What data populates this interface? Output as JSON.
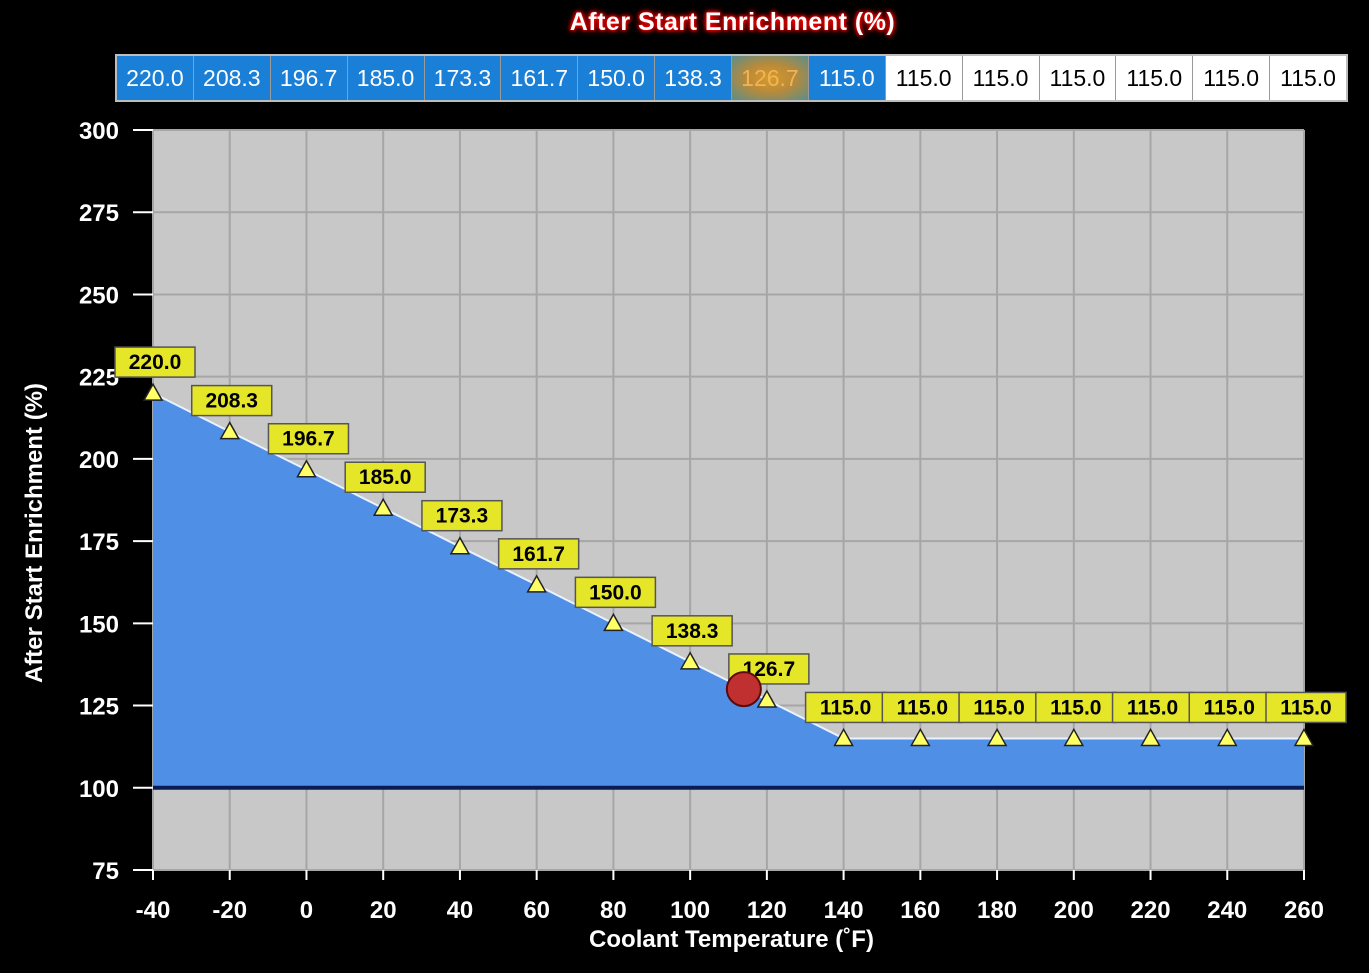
{
  "chart_data": {
    "type": "area",
    "title": "After Start Enrichment (%)",
    "xlabel": "Coolant Temperature (˚F)",
    "ylabel": "After Start Enrichment (%)",
    "x": [
      -40,
      -20,
      0,
      20,
      40,
      60,
      80,
      100,
      120,
      140,
      160,
      180,
      200,
      220,
      240,
      260
    ],
    "values": [
      220.0,
      208.3,
      196.7,
      185.0,
      173.3,
      161.7,
      150.0,
      138.3,
      126.7,
      115.0,
      115.0,
      115.0,
      115.0,
      115.0,
      115.0,
      115.0
    ],
    "labels": [
      "220.0",
      "208.3",
      "196.7",
      "185.0",
      "173.3",
      "161.7",
      "150.0",
      "138.3",
      "126.7",
      "115.0",
      "115.0",
      "115.0",
      "115.0",
      "115.0",
      "115.0",
      "115.0"
    ],
    "xlim": [
      -40,
      260
    ],
    "ylim": [
      75,
      300
    ],
    "xticks": [
      "-40",
      "-20",
      "0",
      "20",
      "40",
      "60",
      "80",
      "100",
      "120",
      "140",
      "160",
      "180",
      "200",
      "220",
      "240",
      "260"
    ],
    "yticks": [
      "75",
      "100",
      "125",
      "150",
      "175",
      "200",
      "225",
      "250",
      "275",
      "300"
    ],
    "baseline": 100,
    "grid": true,
    "cursor": {
      "x": 114,
      "y": 130
    },
    "colors": {
      "fill": "#4f8fe6",
      "plot_bg": "#c8c8c8",
      "grid": "#a6a6a6",
      "label_bg": "#e6e628",
      "marker": "#ffff66",
      "cursor": "#c03030"
    }
  },
  "table": {
    "cells": [
      "220.0",
      "208.3",
      "196.7",
      "185.0",
      "173.3",
      "161.7",
      "150.0",
      "138.3",
      "126.7",
      "115.0",
      "115.0",
      "115.0",
      "115.0",
      "115.0",
      "115.0",
      "115.0"
    ],
    "blue_count": 10,
    "active_index": 8,
    "blue_color": "#1a7fd6"
  }
}
